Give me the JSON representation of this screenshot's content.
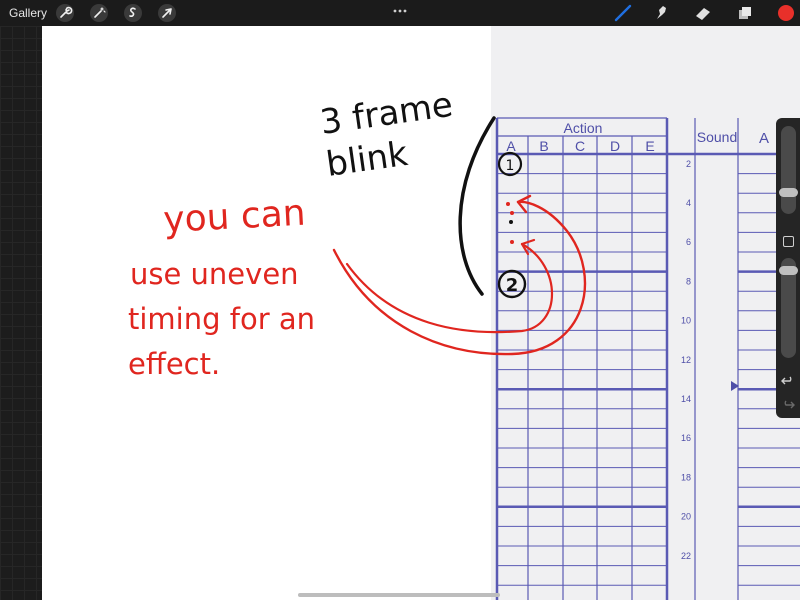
{
  "toolbar": {
    "gallery_label": "Gallery",
    "left_tools": [
      "wrench-icon",
      "magic-wand-icon",
      "selection-icon",
      "transform-arrow-icon"
    ],
    "right_tools": [
      "brush-icon",
      "smudge-icon",
      "eraser-icon",
      "layers-icon"
    ],
    "brush_color": "#1f6fe0",
    "current_color": "#e8302a"
  },
  "exposure_sheet": {
    "action_header": "Action",
    "columns": [
      "A",
      "B",
      "C",
      "D",
      "E"
    ],
    "sound_header": "Sound",
    "extra_column": "A",
    "frame_numbers": [
      "2",
      "4",
      "6",
      "8",
      "10",
      "12",
      "14",
      "16",
      "18",
      "20",
      "22"
    ],
    "line_color": "#5a5ab4"
  },
  "annotations": {
    "black_note": [
      "3 frame",
      "blink"
    ],
    "red_note": [
      "you can",
      "use uneven",
      "timing for an",
      "effect."
    ],
    "frame_marks": [
      "1",
      "2"
    ],
    "black_ink": "#111111",
    "red_ink": "#e0261f"
  },
  "side_panel": {
    "icons": [
      "brush-size-slider",
      "modify-button-icon",
      "opacity-slider",
      "undo-icon",
      "redo-icon"
    ]
  }
}
